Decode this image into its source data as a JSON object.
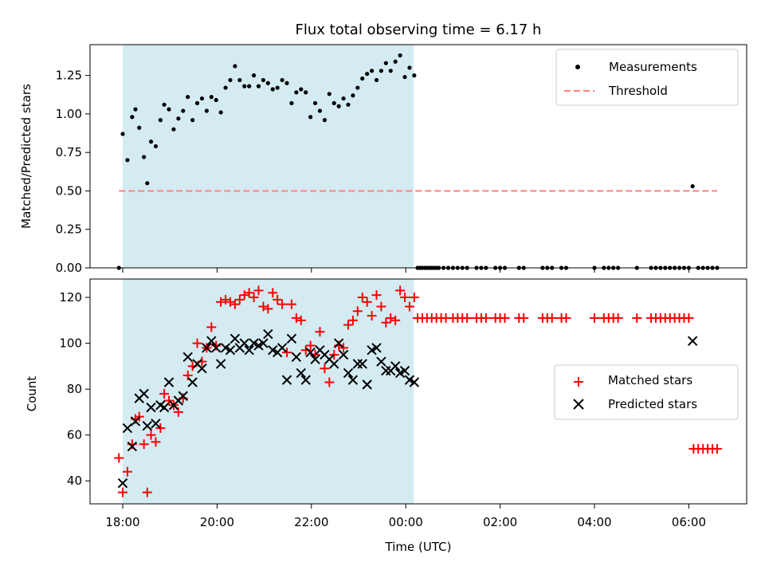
{
  "chart_data": {
    "title": "Flux total observing time = 6.17 h",
    "xlabel": "Time (UTC)",
    "x_unit": "hours since 18:00 UTC",
    "x_ticks": [
      {
        "value": 0,
        "label": "18:00"
      },
      {
        "value": 2,
        "label": "20:00"
      },
      {
        "value": 4,
        "label": "22:00"
      },
      {
        "value": 6,
        "label": "00:00"
      },
      {
        "value": 8,
        "label": "02:00"
      },
      {
        "value": 10,
        "label": "04:00"
      },
      {
        "value": 12,
        "label": "06:00"
      }
    ],
    "shaded_region": {
      "x_start": 0.0,
      "x_end": 6.17,
      "color": "#d4ebf2"
    },
    "panels": [
      {
        "type": "scatter",
        "ylabel": "Matched/Predicted stars",
        "xlim": [
          -0.72,
          12.4
        ],
        "ylim": [
          0,
          1.45
        ],
        "y_ticks": [
          "0.00",
          "0.25",
          "0.50",
          "0.75",
          "1.00",
          "1.25"
        ],
        "legend": {
          "position": "top-right",
          "entries": [
            "Measurements",
            "Threshold"
          ]
        },
        "threshold": {
          "name": "Threshold",
          "value": 0.5,
          "x_start": -0.08,
          "x_end": 12.6,
          "color": "#ff7f7f"
        },
        "measurements": {
          "name": "Measurements",
          "color": "#000000",
          "x": [
            -0.08,
            0.0,
            0.1,
            0.2,
            0.27,
            0.35,
            0.45,
            0.52,
            0.6,
            0.7,
            0.8,
            0.88,
            0.98,
            1.08,
            1.18,
            1.28,
            1.38,
            1.48,
            1.58,
            1.68,
            1.78,
            1.88,
            1.98,
            2.08,
            2.18,
            2.28,
            2.38,
            2.48,
            2.58,
            2.68,
            2.78,
            2.88,
            2.98,
            3.08,
            3.18,
            3.28,
            3.38,
            3.48,
            3.58,
            3.68,
            3.78,
            3.88,
            3.98,
            4.08,
            4.18,
            4.28,
            4.38,
            4.48,
            4.58,
            4.68,
            4.78,
            4.88,
            4.98,
            5.08,
            5.18,
            5.28,
            5.38,
            5.48,
            5.58,
            5.68,
            5.78,
            5.88,
            5.98,
            6.08,
            6.18,
            12.08
          ],
          "y": [
            0.0,
            0.87,
            0.7,
            0.98,
            1.03,
            0.91,
            0.72,
            0.55,
            0.82,
            0.79,
            0.96,
            1.06,
            1.03,
            0.9,
            0.97,
            1.02,
            1.11,
            0.96,
            1.07,
            1.1,
            1.02,
            1.11,
            1.09,
            1.01,
            1.17,
            1.22,
            1.31,
            1.22,
            1.18,
            1.18,
            1.25,
            1.18,
            1.22,
            1.2,
            1.16,
            1.17,
            1.22,
            1.2,
            1.07,
            1.14,
            1.16,
            1.14,
            0.98,
            1.07,
            1.02,
            0.96,
            1.13,
            1.07,
            1.05,
            1.1,
            1.06,
            1.12,
            1.17,
            1.23,
            1.26,
            1.28,
            1.22,
            1.28,
            1.33,
            1.28,
            1.34,
            1.38,
            1.24,
            1.3,
            1.25,
            0.53
          ]
        },
        "zero_points": {
          "x": [
            6.25,
            6.3,
            6.35,
            6.4,
            6.45,
            6.5,
            6.55,
            6.6,
            6.65,
            6.7,
            6.8,
            6.9,
            7.0,
            7.1,
            7.2,
            7.3,
            7.5,
            7.6,
            7.7,
            7.9,
            8.0,
            8.1,
            8.4,
            8.5,
            8.9,
            9.0,
            9.1,
            9.3,
            9.4,
            10.0,
            10.2,
            10.3,
            10.4,
            10.5,
            10.9,
            11.2,
            11.3,
            11.4,
            11.5,
            11.6,
            11.7,
            11.8,
            11.9,
            12.0,
            12.2,
            12.3,
            12.4,
            12.5,
            12.6
          ],
          "y": 0.0
        }
      },
      {
        "type": "scatter",
        "ylabel": "Count",
        "xlim": [
          -0.72,
          12.4
        ],
        "ylim": [
          30,
          128
        ],
        "y_ticks": [
          "40",
          "60",
          "80",
          "100",
          "120"
        ],
        "legend": {
          "position": "center-right",
          "entries": [
            "Matched stars",
            "Predicted stars"
          ]
        },
        "series": [
          {
            "name": "Matched stars",
            "marker": "plus",
            "color": "#ff0000",
            "x": [
              -0.08,
              0.0,
              0.1,
              0.2,
              0.27,
              0.35,
              0.45,
              0.52,
              0.6,
              0.7,
              0.8,
              0.88,
              0.98,
              1.08,
              1.18,
              1.28,
              1.38,
              1.48,
              1.58,
              1.68,
              1.78,
              1.88,
              1.98,
              2.08,
              2.18,
              2.28,
              2.38,
              2.48,
              2.58,
              2.68,
              2.78,
              2.88,
              2.98,
              3.08,
              3.18,
              3.28,
              3.38,
              3.48,
              3.58,
              3.68,
              3.78,
              3.88,
              3.98,
              4.08,
              4.18,
              4.28,
              4.38,
              4.48,
              4.58,
              4.68,
              4.78,
              4.88,
              4.98,
              5.08,
              5.18,
              5.28,
              5.38,
              5.48,
              5.58,
              5.68,
              5.78,
              5.88,
              5.98,
              6.08,
              6.18,
              6.25,
              6.35,
              6.45,
              6.55,
              6.65,
              6.75,
              6.85,
              7.0,
              7.1,
              7.2,
              7.3,
              7.5,
              7.6,
              7.7,
              7.9,
              8.0,
              8.1,
              8.4,
              8.5,
              8.9,
              9.0,
              9.1,
              9.3,
              9.4,
              10.0,
              10.2,
              10.3,
              10.4,
              10.5,
              10.9,
              11.2,
              11.3,
              11.4,
              11.5,
              11.6,
              11.7,
              11.8,
              11.9,
              12.0,
              12.1,
              12.2,
              12.3,
              12.4,
              12.5,
              12.6
            ],
            "y": [
              50,
              35,
              44,
              56,
              67,
              68,
              56,
              35,
              60,
              57,
              63,
              78,
              75,
              73,
              70,
              76,
              86,
              90,
              100,
              92,
              98,
              107,
              99,
              118,
              119,
              118,
              117,
              119,
              121,
              122,
              120,
              123,
              116,
              115,
              122,
              119,
              117,
              96,
              117,
              111,
              110,
              97,
              99,
              95,
              105,
              89,
              83,
              95,
              99,
              98,
              108,
              110,
              114,
              120,
              118,
              112,
              121,
              116,
              109,
              111,
              110,
              123,
              120,
              116,
              120,
              111,
              111,
              111,
              111,
              111,
              111,
              111,
              111,
              111,
              111,
              111,
              111,
              111,
              111,
              111,
              111,
              111,
              111,
              111,
              111,
              111,
              111,
              111,
              111,
              111,
              111,
              111,
              111,
              111,
              111,
              111,
              111,
              111,
              111,
              111,
              111,
              111,
              111,
              111,
              54,
              54,
              54,
              54,
              54,
              54
            ]
          },
          {
            "name": "Predicted stars",
            "marker": "x",
            "color": "#000000",
            "x": [
              0.0,
              0.1,
              0.2,
              0.27,
              0.35,
              0.45,
              0.52,
              0.6,
              0.7,
              0.8,
              0.88,
              0.98,
              1.08,
              1.18,
              1.28,
              1.38,
              1.48,
              1.58,
              1.68,
              1.78,
              1.88,
              1.98,
              2.08,
              2.18,
              2.28,
              2.38,
              2.48,
              2.58,
              2.68,
              2.78,
              2.88,
              2.98,
              3.08,
              3.18,
              3.28,
              3.38,
              3.48,
              3.58,
              3.68,
              3.78,
              3.88,
              3.98,
              4.08,
              4.18,
              4.28,
              4.38,
              4.48,
              4.58,
              4.68,
              4.78,
              4.88,
              4.98,
              5.08,
              5.18,
              5.28,
              5.38,
              5.48,
              5.58,
              5.68,
              5.78,
              5.88,
              5.98,
              6.08,
              6.18,
              12.08
            ],
            "y": [
              39,
              63,
              55,
              66,
              76,
              78,
              64,
              72,
              65,
              73,
              72,
              83,
              73,
              75,
              77,
              94,
              83,
              91,
              89,
              98,
              101,
              98,
              91,
              98,
              97,
              102,
              98,
              100,
              97,
              100,
              99,
              100,
              104,
              97,
              96,
              98,
              84,
              102,
              94,
              87,
              84,
              96,
              93,
              97,
              95,
              93,
              91,
              100,
              95,
              87,
              84,
              91,
              91,
              82,
              97,
              98,
              92,
              88,
              88,
              90,
              87,
              88,
              84,
              83,
              101
            ]
          }
        ]
      }
    ]
  }
}
